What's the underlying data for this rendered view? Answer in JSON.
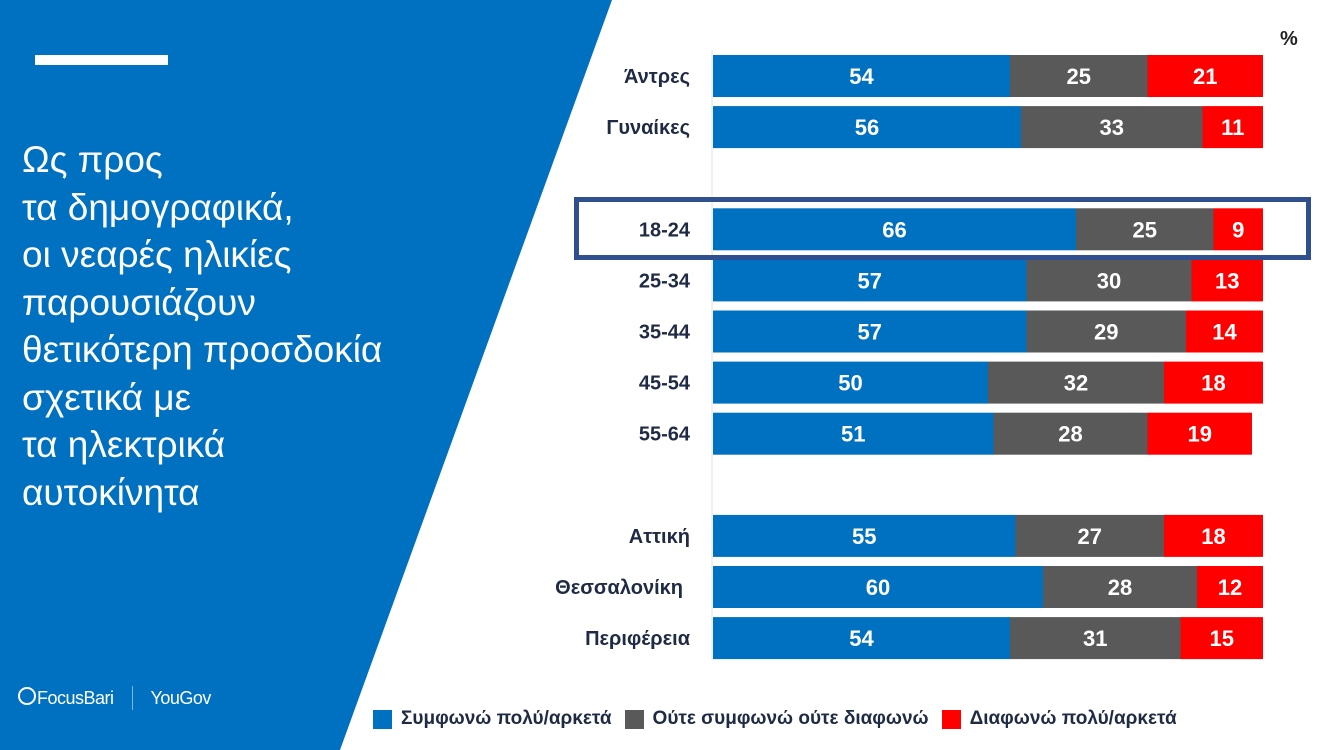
{
  "headline": "Ως προς\nτα δημογραφικά,\nοι νεαρές ηλικίες\nπαρουσιάζουν\nθετικότερη προσδοκία\nσχετικά με\nτα ηλεκτρικά\nαυτοκίνητα",
  "logos": {
    "focusbari": "FocusBari",
    "yougov": "YouGov"
  },
  "colors": {
    "panel": "#0070c0",
    "highlight": "#2f4f8f"
  },
  "chart_data": {
    "type": "bar",
    "orientation": "horizontal-stacked-100",
    "unit_label": "%",
    "categories": [
      "Άντρες",
      "Γυναίκες",
      "18-24",
      "25-34",
      "35-44",
      "45-54",
      "55-64",
      "Αττική",
      "Θεσσαλονίκη",
      "Περιφέρεια"
    ],
    "groups": [
      [
        0,
        1
      ],
      [
        2,
        3,
        4,
        5,
        6
      ],
      [
        7,
        8,
        9
      ]
    ],
    "highlighted_category": "18-24",
    "series": [
      {
        "name": "Συμφωνώ πολύ/αρκετά",
        "color": "#0070c0",
        "values": [
          54,
          56,
          66,
          57,
          57,
          50,
          51,
          55,
          60,
          54
        ]
      },
      {
        "name": "Ούτε συμφωνώ ούτε διαφωνώ",
        "color": "#595959",
        "values": [
          25,
          33,
          25,
          30,
          29,
          32,
          28,
          27,
          28,
          31
        ]
      },
      {
        "name": "Διαφωνώ πολύ/αρκετά",
        "color": "#ff0000",
        "values": [
          21,
          11,
          9,
          13,
          14,
          18,
          19,
          18,
          12,
          15
        ]
      }
    ],
    "xlim": [
      0,
      100
    ],
    "legend_position": "bottom"
  }
}
